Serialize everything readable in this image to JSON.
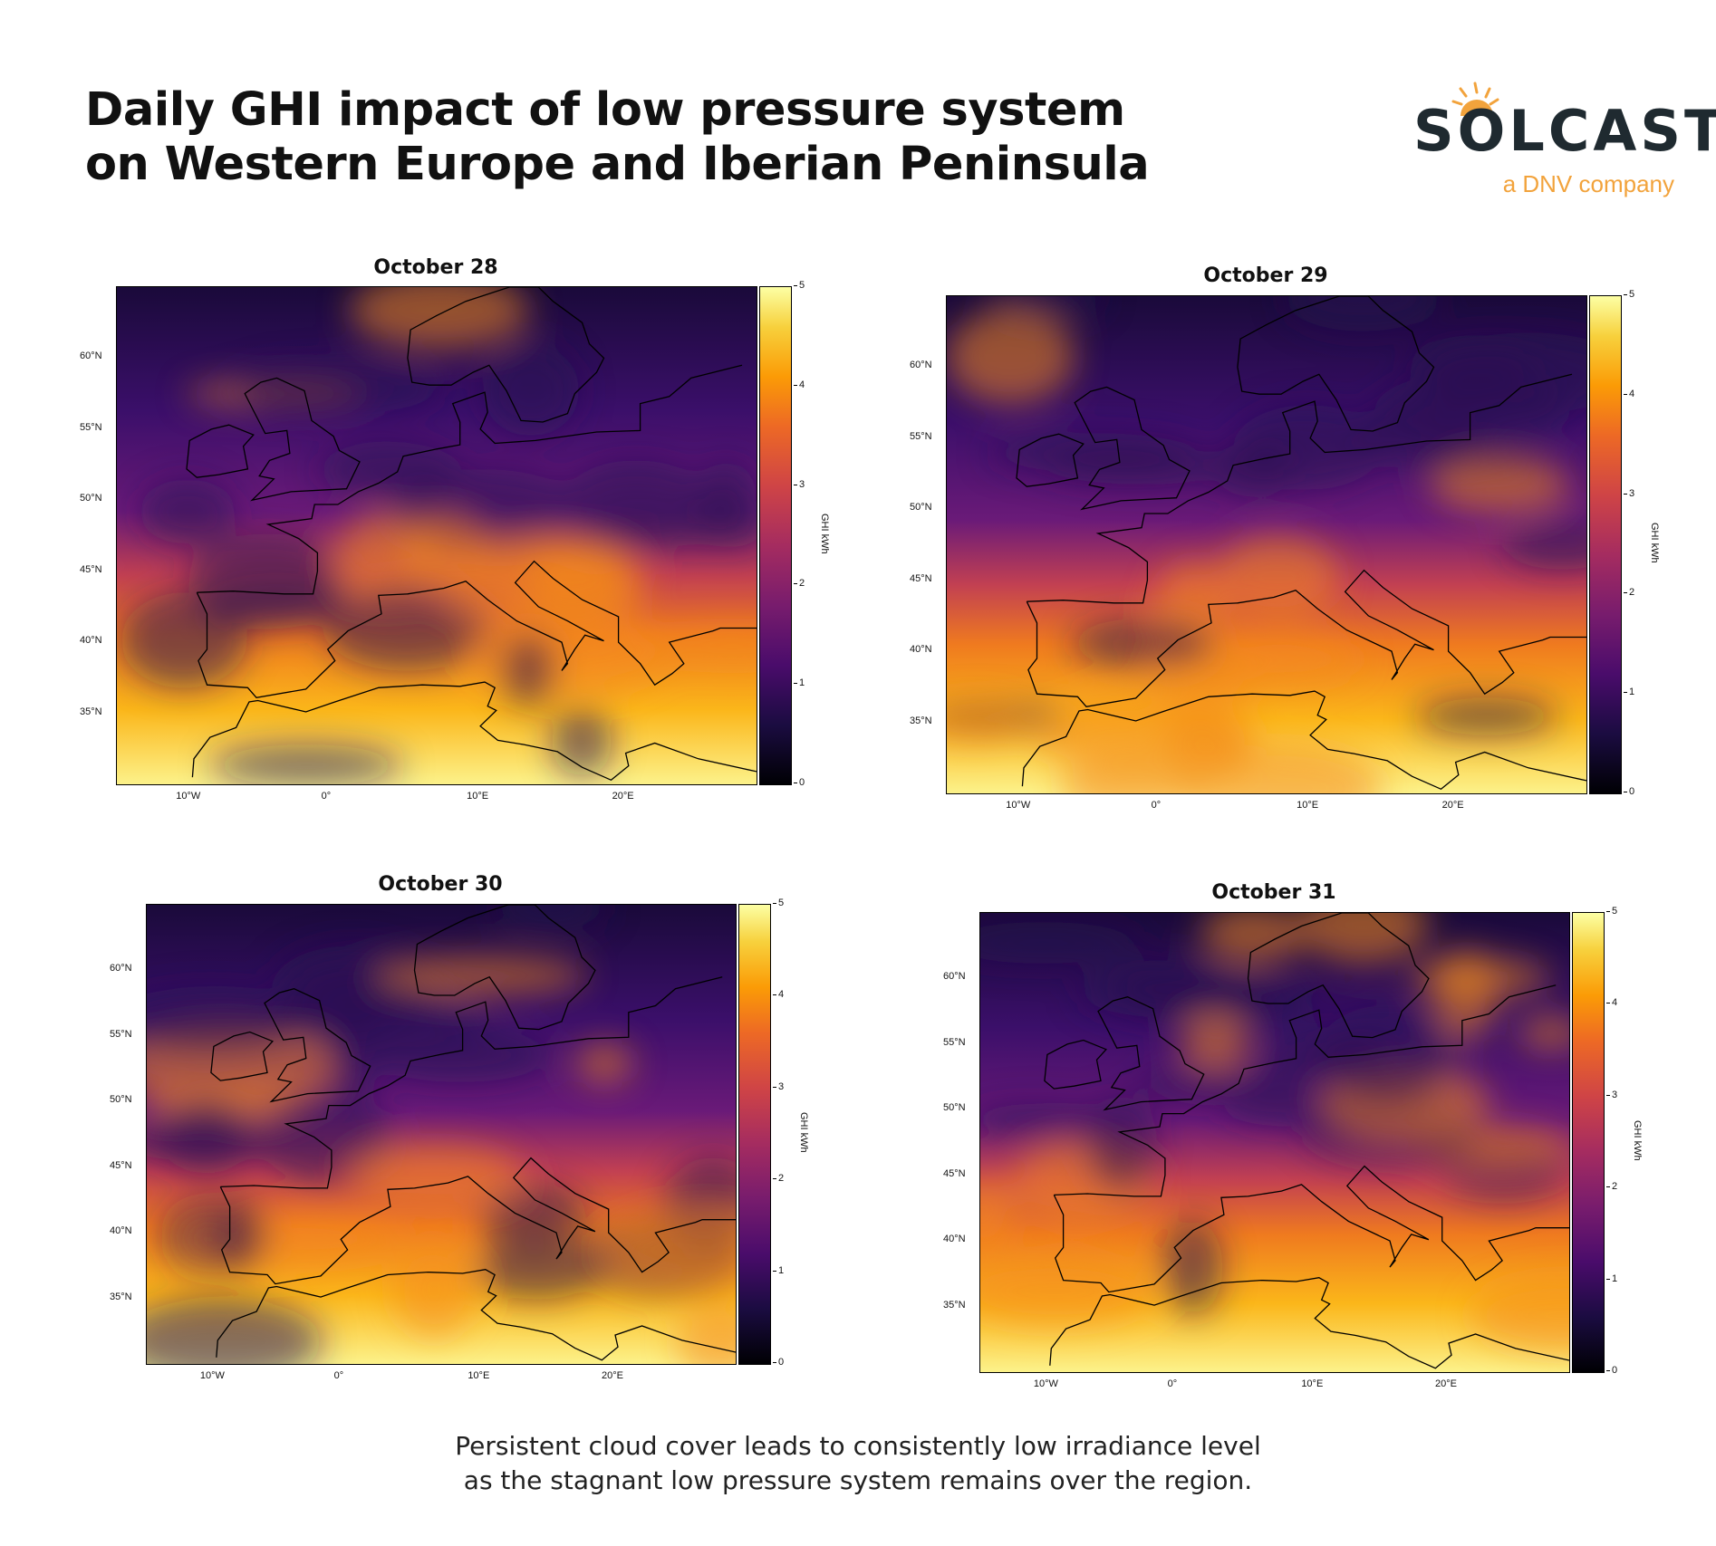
{
  "title": {
    "line1": "Daily GHI impact of low pressure system",
    "line2": "on Western Europe and Iberian Peninsula"
  },
  "logo": {
    "word": "SOLCAST",
    "sub": "a DNV company",
    "icon": "sun-icon",
    "colors": {
      "word": "#1f2a30",
      "accent": "#f2a33c"
    }
  },
  "panels": [
    {
      "title": "October 28"
    },
    {
      "title": "October 29"
    },
    {
      "title": "October 30"
    },
    {
      "title": "October 31"
    }
  ],
  "axes": {
    "lat_ticks": [
      "60°N",
      "55°N",
      "50°N",
      "45°N",
      "40°N",
      "35°N"
    ],
    "lon_ticks": [
      "10°W",
      "0°",
      "10°E",
      "20°E"
    ]
  },
  "colorbar": {
    "label": "GHI kWh",
    "ticks": [
      "0",
      "1",
      "2",
      "3",
      "4",
      "5"
    ],
    "range": [
      0,
      5
    ],
    "colormap": "inferno"
  },
  "caption": {
    "line1": "Persistent cloud cover leads to consistently low irradiance level",
    "line2": "as the stagnant low pressure system remains over the region."
  }
}
